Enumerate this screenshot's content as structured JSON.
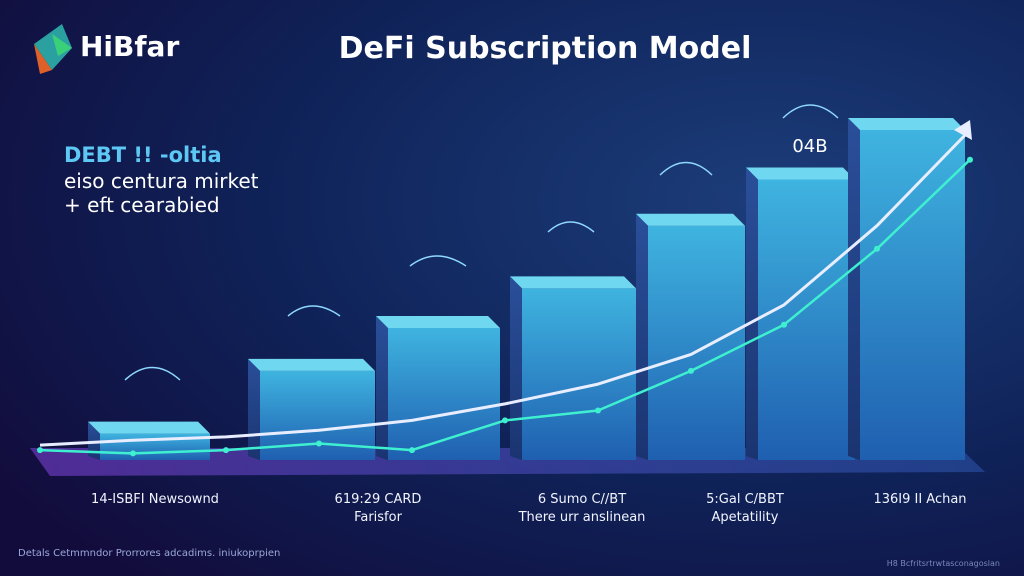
{
  "brand": "HiBfar",
  "chart_data": {
    "type": "bar",
    "title": "DeFi Subscription Model",
    "annotation_lines": [
      "DEBT !! -oltia",
      "eiso centura mirket",
      "+ eft  cearabied"
    ],
    "top_label": "04B",
    "values": [
      8,
      27,
      40,
      52,
      71,
      85,
      100
    ],
    "ylim": [
      0,
      100
    ],
    "xlim": [
      0,
      10
    ],
    "series": [
      {
        "color": "#e8eeff",
        "x": [
          0,
          1,
          2,
          3,
          4,
          5,
          6,
          7,
          8,
          9,
          10
        ],
        "values": [
          4.5,
          6,
          7,
          9,
          12,
          17,
          23,
          32,
          47,
          71,
          100
        ]
      },
      {
        "color": "#3ff0d0",
        "x": [
          0,
          1,
          2,
          3,
          4,
          5,
          6,
          7,
          8,
          9,
          10
        ],
        "values": [
          3,
          2,
          3,
          5,
          3,
          12,
          15,
          27,
          41,
          64,
          91
        ]
      }
    ],
    "category_labels": [
      [
        "14-ISBFI Newsownd"
      ],
      [
        "619:29 CARD",
        "Farisfor"
      ],
      [
        "6 Sumo C//BT",
        "There urr anslinean"
      ],
      [
        "5:Gal C/BBT",
        "Apetatility"
      ],
      [
        "136I9 II Achan"
      ]
    ]
  },
  "footer_left": "Detals Cetmmndor Prorrores adcadims. iniukoprpien",
  "footer_right": "H8 Bcfritsrtrwtasconagoslan"
}
